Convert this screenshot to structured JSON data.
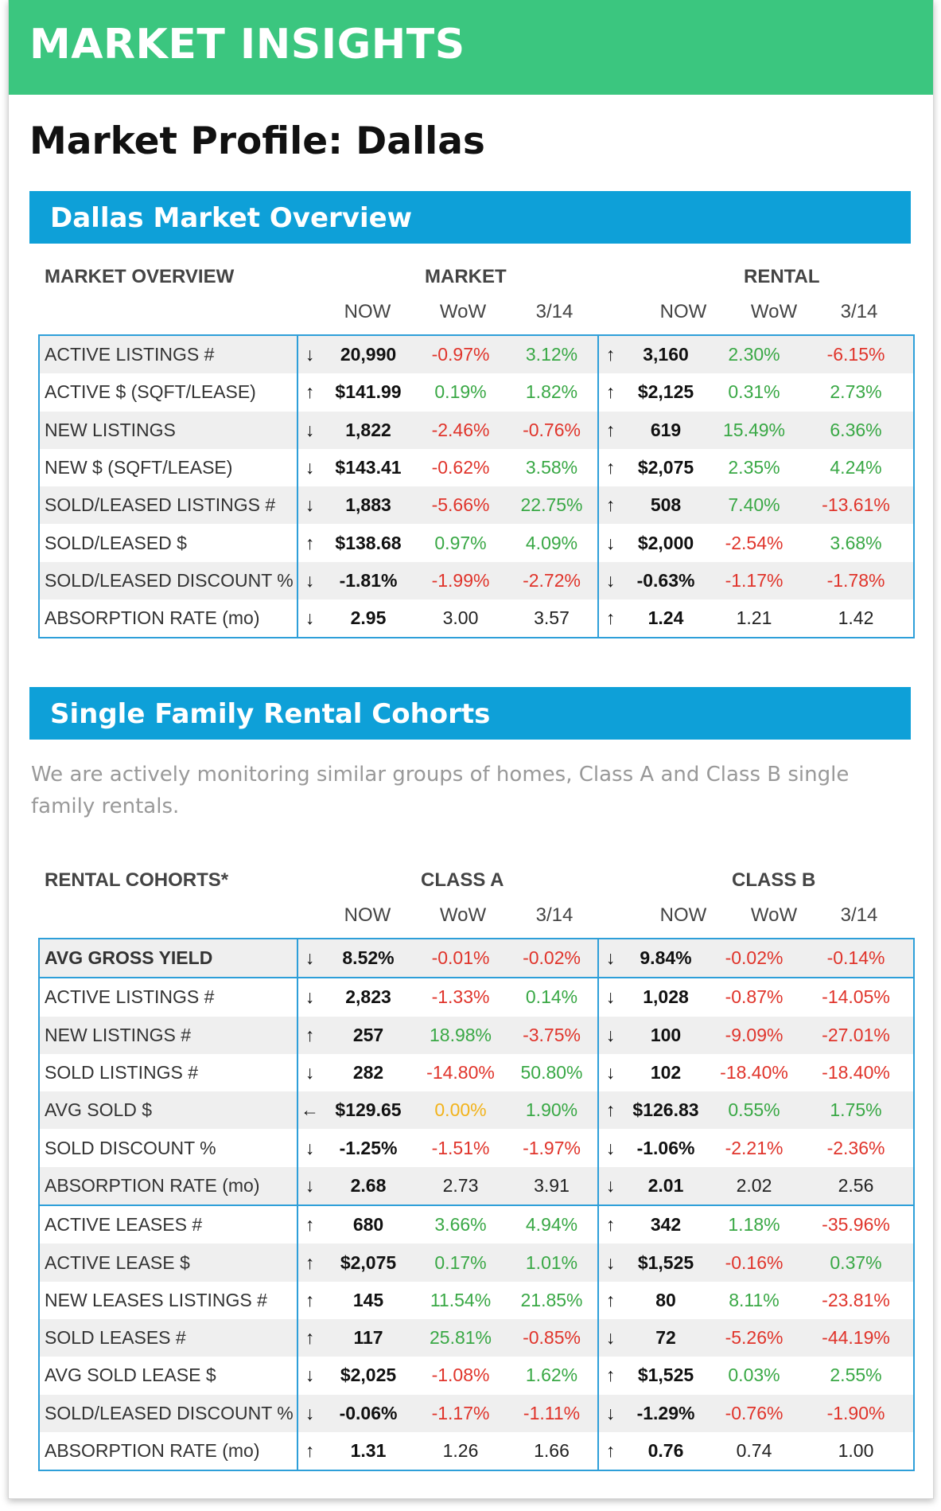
{
  "header": {
    "title": "MARKET INSIGHTS"
  },
  "page_title": "Market Profile: Dallas",
  "overview": {
    "section_title": "Dallas Market Overview",
    "col_label": "MARKET OVERVIEW",
    "group_left": "MARKET",
    "group_right": "RENTAL",
    "sub_headers": [
      "NOW",
      "WoW",
      "3/14",
      "NOW",
      "WoW",
      "3/14"
    ],
    "rows": [
      {
        "label": "ACTIVE LISTINGS #",
        "m_arrow": "↓",
        "m_now": "20,990",
        "m_wow": "-0.97%",
        "m_wow_c": "neg",
        "m_314": "3.12%",
        "m_314_c": "pos",
        "r_arrow": "↑",
        "r_now": "3,160",
        "r_wow": "2.30%",
        "r_wow_c": "pos",
        "r_314": "-6.15%",
        "r_314_c": "neg"
      },
      {
        "label": "ACTIVE $ (SQFT/LEASE)",
        "m_arrow": "↑",
        "m_now": "$141.99",
        "m_wow": "0.19%",
        "m_wow_c": "pos",
        "m_314": "1.82%",
        "m_314_c": "pos",
        "r_arrow": "↑",
        "r_now": "$2,125",
        "r_wow": "0.31%",
        "r_wow_c": "pos",
        "r_314": "2.73%",
        "r_314_c": "pos"
      },
      {
        "label": "NEW LISTINGS",
        "m_arrow": "↓",
        "m_now": "1,822",
        "m_wow": "-2.46%",
        "m_wow_c": "neg",
        "m_314": "-0.76%",
        "m_314_c": "neg",
        "r_arrow": "↑",
        "r_now": "619",
        "r_wow": "15.49%",
        "r_wow_c": "pos",
        "r_314": "6.36%",
        "r_314_c": "pos"
      },
      {
        "label": "NEW $ (SQFT/LEASE)",
        "m_arrow": "↓",
        "m_now": "$143.41",
        "m_wow": "-0.62%",
        "m_wow_c": "neg",
        "m_314": "3.58%",
        "m_314_c": "pos",
        "r_arrow": "↑",
        "r_now": "$2,075",
        "r_wow": "2.35%",
        "r_wow_c": "pos",
        "r_314": "4.24%",
        "r_314_c": "pos"
      },
      {
        "label": "SOLD/LEASED LISTINGS #",
        "m_arrow": "↓",
        "m_now": "1,883",
        "m_wow": "-5.66%",
        "m_wow_c": "neg",
        "m_314": "22.75%",
        "m_314_c": "pos",
        "r_arrow": "↑",
        "r_now": "508",
        "r_wow": "7.40%",
        "r_wow_c": "pos",
        "r_314": "-13.61%",
        "r_314_c": "neg"
      },
      {
        "label": "SOLD/LEASED $",
        "m_arrow": "↑",
        "m_now": "$138.68",
        "m_wow": "0.97%",
        "m_wow_c": "pos",
        "m_314": "4.09%",
        "m_314_c": "pos",
        "r_arrow": "↓",
        "r_now": "$2,000",
        "r_wow": "-2.54%",
        "r_wow_c": "neg",
        "r_314": "3.68%",
        "r_314_c": "pos"
      },
      {
        "label": "SOLD/LEASED DISCOUNT %",
        "m_arrow": "↓",
        "m_now": "-1.81%",
        "m_wow": "-1.99%",
        "m_wow_c": "neg",
        "m_314": "-2.72%",
        "m_314_c": "neg",
        "r_arrow": "↓",
        "r_now": "-0.63%",
        "r_wow": "-1.17%",
        "r_wow_c": "neg",
        "r_314": "-1.78%",
        "r_314_c": "neg"
      },
      {
        "label": "ABSORPTION RATE (mo)",
        "m_arrow": "↓",
        "m_now": "2.95",
        "m_wow": "3.00",
        "m_wow_c": "plain",
        "m_314": "3.57",
        "m_314_c": "plain",
        "r_arrow": "↑",
        "r_now": "1.24",
        "r_wow": "1.21",
        "r_wow_c": "plain",
        "r_314": "1.42",
        "r_314_c": "plain"
      }
    ]
  },
  "cohorts": {
    "section_title": "Single Family Rental Cohorts",
    "description": "We are actively monitoring similar groups of homes, Class A and Class B single family rentals.",
    "col_label": "RENTAL COHORTS*",
    "group_left": "CLASS A",
    "group_right": "CLASS B",
    "sub_headers": [
      "NOW",
      "WoW",
      "3/14",
      "NOW",
      "WoW",
      "3/14"
    ],
    "rows": [
      {
        "label": "AVG GROSS YIELD",
        "bold": true,
        "m_arrow": "↓",
        "m_now": "8.52%",
        "m_wow": "-0.01%",
        "m_wow_c": "neg",
        "m_314": "-0.02%",
        "m_314_c": "neg",
        "r_arrow": "↓",
        "r_now": "9.84%",
        "r_wow": "-0.02%",
        "r_wow_c": "neg",
        "r_314": "-0.14%",
        "r_314_c": "neg"
      },
      {
        "label": "ACTIVE LISTINGS #",
        "sep": true,
        "m_arrow": "↓",
        "m_now": "2,823",
        "m_wow": "-1.33%",
        "m_wow_c": "neg",
        "m_314": "0.14%",
        "m_314_c": "pos",
        "r_arrow": "↓",
        "r_now": "1,028",
        "r_wow": "-0.87%",
        "r_wow_c": "neg",
        "r_314": "-14.05%",
        "r_314_c": "neg"
      },
      {
        "label": "NEW LISTINGS #",
        "m_arrow": "↑",
        "m_now": "257",
        "m_wow": "18.98%",
        "m_wow_c": "pos",
        "m_314": "-3.75%",
        "m_314_c": "neg",
        "r_arrow": "↓",
        "r_now": "100",
        "r_wow": "-9.09%",
        "r_wow_c": "neg",
        "r_314": "-27.01%",
        "r_314_c": "neg"
      },
      {
        "label": "SOLD LISTINGS #",
        "m_arrow": "↓",
        "m_now": "282",
        "m_wow": "-14.80%",
        "m_wow_c": "neg",
        "m_314": "50.80%",
        "m_314_c": "pos",
        "r_arrow": "↓",
        "r_now": "102",
        "r_wow": "-18.40%",
        "r_wow_c": "neg",
        "r_314": "-18.40%",
        "r_314_c": "neg"
      },
      {
        "label": "AVG SOLD $",
        "m_arrow": "←",
        "m_now": "$129.65",
        "m_wow": "0.00%",
        "m_wow_c": "neu",
        "m_314": "1.90%",
        "m_314_c": "pos",
        "r_arrow": "↑",
        "r_now": "$126.83",
        "r_wow": "0.55%",
        "r_wow_c": "pos",
        "r_314": "1.75%",
        "r_314_c": "pos"
      },
      {
        "label": "SOLD DISCOUNT %",
        "m_arrow": "↓",
        "m_now": "-1.25%",
        "m_wow": "-1.51%",
        "m_wow_c": "neg",
        "m_314": "-1.97%",
        "m_314_c": "neg",
        "r_arrow": "↓",
        "r_now": "-1.06%",
        "r_wow": "-2.21%",
        "r_wow_c": "neg",
        "r_314": "-2.36%",
        "r_314_c": "neg"
      },
      {
        "label": "ABSORPTION RATE (mo)",
        "m_arrow": "↓",
        "m_now": "2.68",
        "m_wow": "2.73",
        "m_wow_c": "plain",
        "m_314": "3.91",
        "m_314_c": "plain",
        "r_arrow": "↓",
        "r_now": "2.01",
        "r_wow": "2.02",
        "r_wow_c": "plain",
        "r_314": "2.56",
        "r_314_c": "plain"
      },
      {
        "label": "ACTIVE LEASES #",
        "sep": true,
        "m_arrow": "↑",
        "m_now": "680",
        "m_wow": "3.66%",
        "m_wow_c": "pos",
        "m_314": "4.94%",
        "m_314_c": "pos",
        "r_arrow": "↑",
        "r_now": "342",
        "r_wow": "1.18%",
        "r_wow_c": "pos",
        "r_314": "-35.96%",
        "r_314_c": "neg"
      },
      {
        "label": "ACTIVE LEASE $",
        "m_arrow": "↑",
        "m_now": "$2,075",
        "m_wow": "0.17%",
        "m_wow_c": "pos",
        "m_314": "1.01%",
        "m_314_c": "pos",
        "r_arrow": "↓",
        "r_now": "$1,525",
        "r_wow": "-0.16%",
        "r_wow_c": "neg",
        "r_314": "0.37%",
        "r_314_c": "pos"
      },
      {
        "label": "NEW LEASES LISTINGS #",
        "m_arrow": "↑",
        "m_now": "145",
        "m_wow": "11.54%",
        "m_wow_c": "pos",
        "m_314": "21.85%",
        "m_314_c": "pos",
        "r_arrow": "↑",
        "r_now": "80",
        "r_wow": "8.11%",
        "r_wow_c": "pos",
        "r_314": "-23.81%",
        "r_314_c": "neg"
      },
      {
        "label": "SOLD LEASES #",
        "m_arrow": "↑",
        "m_now": "117",
        "m_wow": "25.81%",
        "m_wow_c": "pos",
        "m_314": "-0.85%",
        "m_314_c": "neg",
        "r_arrow": "↓",
        "r_now": "72",
        "r_wow": "-5.26%",
        "r_wow_c": "neg",
        "r_314": "-44.19%",
        "r_314_c": "neg"
      },
      {
        "label": "AVG SOLD LEASE $",
        "m_arrow": "↓",
        "m_now": "$2,025",
        "m_wow": "-1.08%",
        "m_wow_c": "neg",
        "m_314": "1.62%",
        "m_314_c": "pos",
        "r_arrow": "↑",
        "r_now": "$1,525",
        "r_wow": "0.03%",
        "r_wow_c": "pos",
        "r_314": "2.55%",
        "r_314_c": "pos"
      },
      {
        "label": "SOLD/LEASED DISCOUNT %",
        "m_arrow": "↓",
        "m_now": "-0.06%",
        "m_wow": "-1.17%",
        "m_wow_c": "neg",
        "m_314": "-1.11%",
        "m_314_c": "neg",
        "r_arrow": "↓",
        "r_now": "-1.29%",
        "r_wow": "-0.76%",
        "r_wow_c": "neg",
        "r_314": "-1.90%",
        "r_314_c": "neg"
      },
      {
        "label": "ABSORPTION RATE (mo)",
        "m_arrow": "↑",
        "m_now": "1.31",
        "m_wow": "1.26",
        "m_wow_c": "plain",
        "m_314": "1.66",
        "m_314_c": "plain",
        "r_arrow": "↑",
        "r_now": "0.76",
        "r_wow": "0.74",
        "r_wow_c": "plain",
        "r_314": "1.00",
        "r_314_c": "plain"
      }
    ]
  },
  "colors": {
    "header_green": "#3bc67f",
    "section_blue": "#0ea0d8",
    "table_border": "#2e9fd9",
    "positive": "#39a845",
    "negative": "#e0342b",
    "neutral": "#f2b31b"
  }
}
